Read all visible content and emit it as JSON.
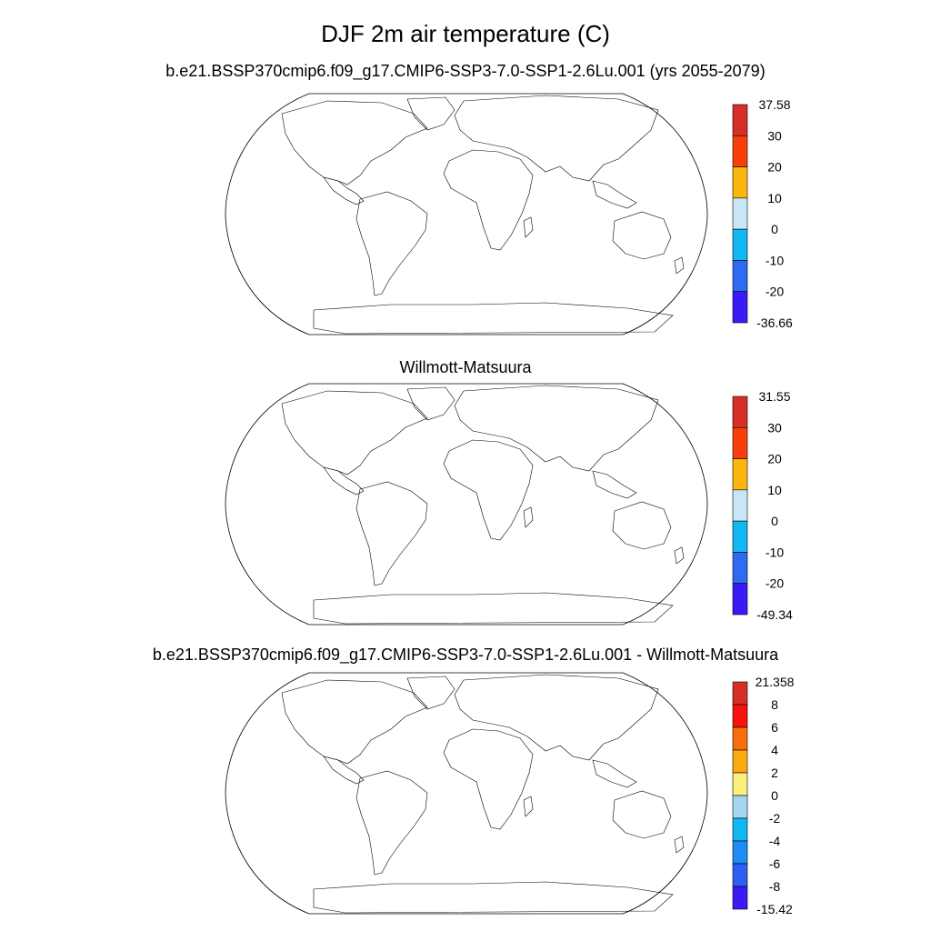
{
  "figure": {
    "title": "DJF 2m air temperature (C)"
  },
  "panels": [
    {
      "title": "b.e21.BSSP370cmip6.f09_g17.CMIP6-SSP3-7.0-SSP1-2.6Lu.001 (yrs 2055-2079)",
      "colorbar": {
        "labels": [
          "37.58",
          "30",
          "20",
          "10",
          "0",
          "-10",
          "-20",
          "-36.66"
        ],
        "colors": [
          "#d62f27",
          "#f63f0b",
          "#fbb70f",
          "#c9e6f6",
          "#12b8f2",
          "#2e6bf0",
          "#3a1bf5"
        ]
      }
    },
    {
      "title": "Willmott-Matsuura",
      "colorbar": {
        "labels": [
          "31.55",
          "30",
          "20",
          "10",
          "0",
          "-10",
          "-20",
          "-49.34"
        ],
        "colors": [
          "#d62f27",
          "#f63f0b",
          "#fbb70f",
          "#c9e6f6",
          "#12b8f2",
          "#2e6bf0",
          "#3a1bf5"
        ]
      }
    },
    {
      "title": "b.e21.BSSP370cmip6.f09_g17.CMIP6-SSP3-7.0-SSP1-2.6Lu.001 - Willmott-Matsuura",
      "colorbar": {
        "labels": [
          "21.358",
          "8",
          "6",
          "4",
          "2",
          "0",
          "-2",
          "-4",
          "-6",
          "-8",
          "-15.42"
        ],
        "colors": [
          "#d62f27",
          "#f7120c",
          "#f76e0a",
          "#fbaa12",
          "#fcf07a",
          "#a6d5f0",
          "#12b8f2",
          "#1f8bf4",
          "#2e5ef2",
          "#3a1bf5"
        ]
      }
    }
  ]
}
